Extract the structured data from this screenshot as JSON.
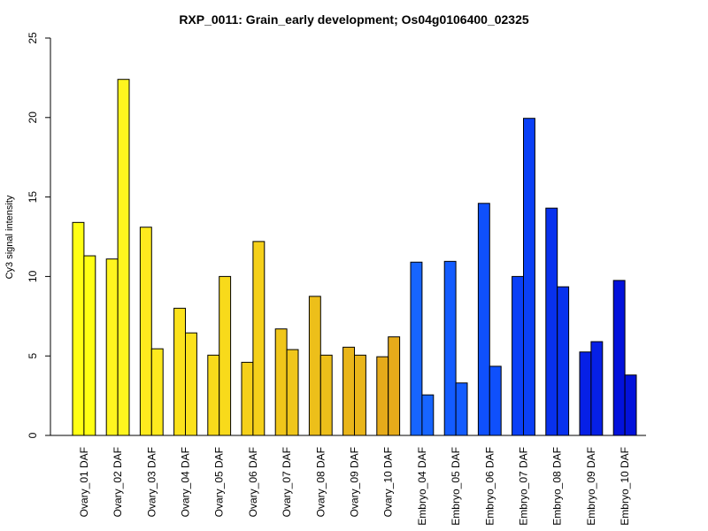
{
  "chart_data": {
    "type": "bar",
    "title": "RXP_0011: Grain_early development; Os04g0106400_02325",
    "xlabel": "",
    "ylabel": "Cy3 signal intensity",
    "ylim": [
      0,
      25
    ],
    "yticks": [
      "0",
      "5",
      "10",
      "15",
      "20",
      "25"
    ],
    "grid": false,
    "legend": "none",
    "categories": [
      "Ovary_01 DAF",
      "Ovary_02 DAF",
      "Ovary_03 DAF",
      "Ovary_04 DAF",
      "Ovary_05 DAF",
      "Ovary_06 DAF",
      "Ovary_07 DAF",
      "Ovary_08 DAF",
      "Ovary_09 DAF",
      "Ovary_10 DAF",
      "Embryo_04 DAF",
      "Embryo_05 DAF",
      "Embryo_06 DAF",
      "Embryo_07 DAF",
      "Embryo_08 DAF",
      "Embryo_09 DAF",
      "Embryo_10 DAF"
    ],
    "series": [
      {
        "values": [
          13.4,
          11.1,
          13.1,
          8.0,
          5.05,
          4.6,
          6.7,
          8.75,
          5.55,
          4.95,
          10.9,
          10.95,
          14.6,
          10.0,
          14.3,
          5.25,
          9.75
        ]
      },
      {
        "values": [
          11.3,
          22.4,
          5.45,
          6.45,
          10.0,
          12.2,
          5.4,
          5.05,
          5.05,
          6.2,
          2.55,
          3.3,
          4.35,
          19.95,
          9.35,
          5.9,
          3.8
        ]
      }
    ],
    "colors": [
      "#ffff14",
      "#fff51f",
      "#feea1e",
      "#fbe21c",
      "#f8da1b",
      "#f5d01a",
      "#f0c61a",
      "#edbf1a",
      "#e9b51a",
      "#e6ab1a",
      "#1765ff",
      "#135cff",
      "#0f50fc",
      "#0b40f6",
      "#0831ee",
      "#0620e6",
      "#0312db"
    ]
  }
}
